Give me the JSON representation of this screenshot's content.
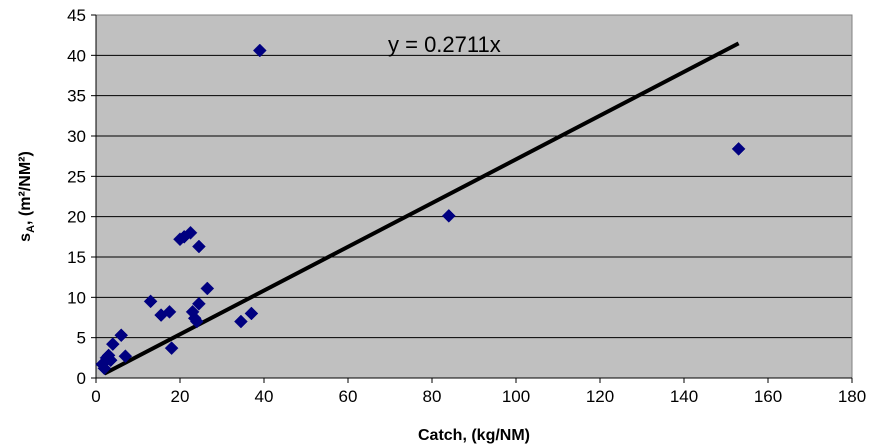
{
  "chart_data": {
    "type": "scatter",
    "title": "",
    "xlabel": "Catch, (kg/NM)",
    "ylabel": {
      "main": "s",
      "sub": "A",
      "rest": ",  (m²/NM²)"
    },
    "xlim": [
      0,
      180
    ],
    "ylim": [
      0,
      45
    ],
    "xticks": [
      0,
      20,
      40,
      60,
      80,
      100,
      120,
      140,
      160,
      180
    ],
    "yticks": [
      0,
      5,
      10,
      15,
      20,
      25,
      30,
      35,
      40,
      45
    ],
    "grid": "horizontal",
    "legend": "none",
    "colors": {
      "plot_background": "#c0c0c0",
      "marker": "#000080",
      "trendline": "#000000",
      "gridline": "#000000"
    },
    "series": [
      {
        "marker": "diamond",
        "x": [
          1.5,
          2.0,
          2.5,
          3.0,
          3.5,
          4.0,
          6.0,
          7.0,
          13.0,
          15.5,
          17.5,
          18.0,
          20.0,
          21.0,
          22.5,
          23.0,
          23.5,
          24.0,
          24.5,
          24.5,
          26.5,
          34.5,
          37.0,
          39.0,
          84.0,
          153.0
        ],
        "y": [
          1.7,
          1.2,
          2.5,
          2.8,
          2.2,
          4.2,
          5.3,
          2.7,
          9.5,
          7.8,
          8.2,
          3.7,
          17.2,
          17.5,
          18.0,
          8.2,
          7.4,
          7.0,
          9.2,
          16.3,
          11.1,
          7.0,
          8.0,
          40.6,
          20.1,
          28.4
        ]
      }
    ],
    "trendline": {
      "equation": "y = 0.2711x",
      "slope": 0.2711,
      "x_range": [
        2,
        153
      ]
    }
  }
}
